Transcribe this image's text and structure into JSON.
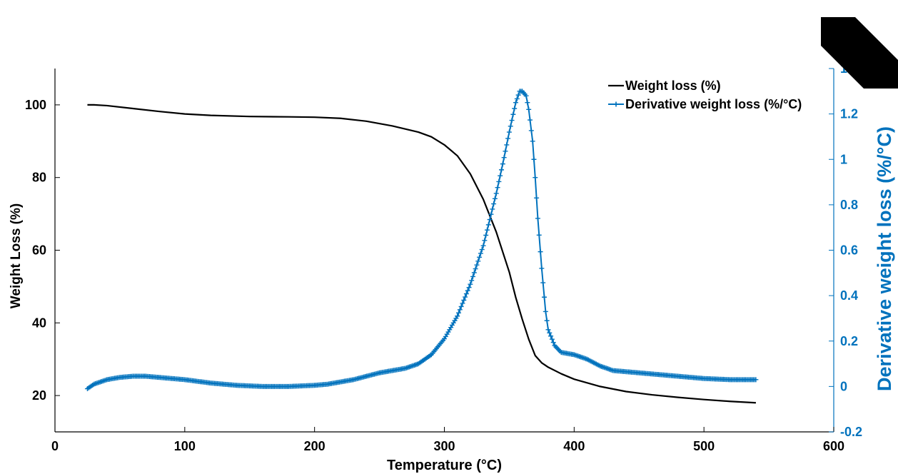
{
  "chart_data": {
    "type": "line",
    "xlabel": "Temperature (°C)",
    "ylabel_left": "Weight Loss (%)",
    "ylabel_right": "Derivative weight loss (%/°C)",
    "xlim": [
      0,
      600
    ],
    "ylim_left": [
      10,
      110
    ],
    "ylim_right": [
      -0.2,
      1.4
    ],
    "x_ticks": [
      0,
      100,
      200,
      300,
      400,
      500,
      600
    ],
    "y_left_ticks": [
      20,
      40,
      60,
      80,
      100
    ],
    "y_right_ticks": [
      -0.2,
      0,
      0.2,
      0.4,
      0.6,
      0.8,
      1,
      1.2,
      1.4
    ],
    "grid": false,
    "legend_position": "top-right",
    "colors": {
      "weight": "#000000",
      "derivative": "#0072BD",
      "right_axis": "#0072BD"
    },
    "series": [
      {
        "name": "Weight loss (%)",
        "axis": "left",
        "x": [
          25,
          30,
          40,
          60,
          80,
          100,
          120,
          150,
          180,
          200,
          220,
          240,
          260,
          280,
          290,
          300,
          310,
          320,
          330,
          340,
          350,
          355,
          360,
          365,
          370,
          375,
          380,
          390,
          400,
          420,
          440,
          460,
          480,
          500,
          520,
          540
        ],
        "y": [
          100,
          100,
          99.8,
          99,
          98.2,
          97.5,
          97.1,
          96.8,
          96.7,
          96.6,
          96.3,
          95.5,
          94.2,
          92.5,
          91.2,
          89,
          86,
          81,
          74,
          65,
          54,
          47,
          41,
          35.5,
          31,
          29,
          27.8,
          26,
          24.5,
          22.5,
          21.1,
          20.2,
          19.5,
          18.9,
          18.4,
          18
        ]
      },
      {
        "name": "Derivative weight loss (%/°C)",
        "axis": "right",
        "x": [
          25,
          30,
          35,
          40,
          50,
          60,
          70,
          80,
          100,
          120,
          140,
          160,
          180,
          200,
          210,
          220,
          230,
          240,
          250,
          260,
          270,
          280,
          290,
          300,
          310,
          320,
          330,
          340,
          345,
          350,
          355,
          358,
          360,
          363,
          365,
          368,
          370,
          372,
          375,
          378,
          380,
          385,
          390,
          400,
          410,
          420,
          430,
          440,
          460,
          480,
          500,
          520,
          540
        ],
        "y": [
          -0.01,
          0.01,
          0.02,
          0.03,
          0.04,
          0.045,
          0.045,
          0.04,
          0.03,
          0.015,
          0.005,
          0.0,
          0.0,
          0.005,
          0.01,
          0.02,
          0.03,
          0.045,
          0.06,
          0.07,
          0.08,
          0.1,
          0.14,
          0.21,
          0.31,
          0.45,
          0.62,
          0.85,
          0.98,
          1.12,
          1.25,
          1.3,
          1.3,
          1.28,
          1.22,
          1.08,
          0.92,
          0.74,
          0.52,
          0.33,
          0.25,
          0.18,
          0.15,
          0.14,
          0.12,
          0.09,
          0.07,
          0.065,
          0.055,
          0.045,
          0.035,
          0.03,
          0.03
        ]
      }
    ]
  }
}
